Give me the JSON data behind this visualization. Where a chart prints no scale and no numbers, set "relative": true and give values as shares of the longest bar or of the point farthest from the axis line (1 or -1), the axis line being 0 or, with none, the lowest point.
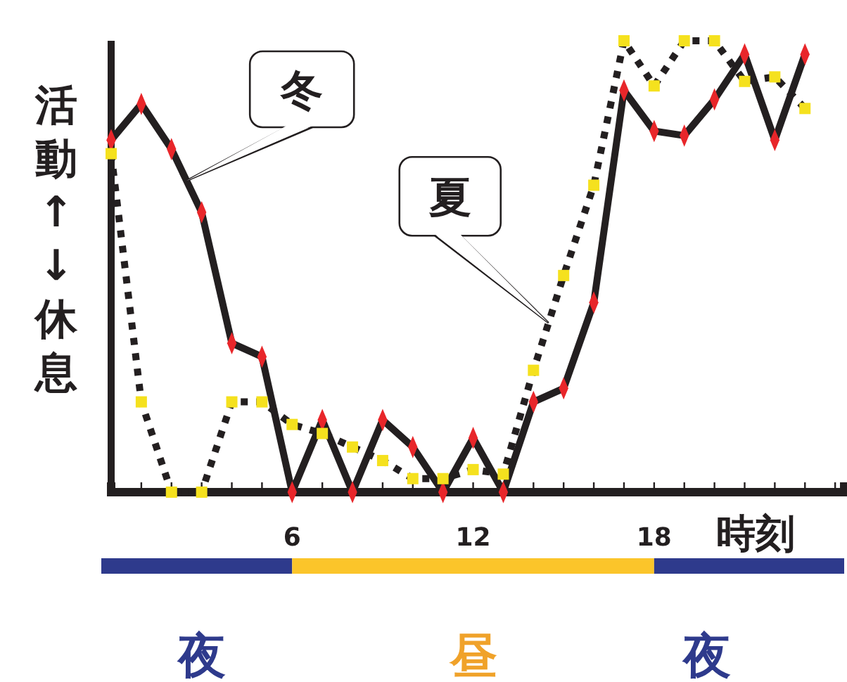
{
  "chart_data": {
    "type": "line",
    "relative": true,
    "xlabel": "時刻",
    "ylabel": "活動↑↓休息",
    "x": [
      0,
      1,
      2,
      3,
      4,
      5,
      6,
      7,
      8,
      9,
      10,
      11,
      12,
      13,
      14,
      15,
      16,
      17,
      18,
      19,
      20,
      21,
      22,
      23
    ],
    "xlim": [
      0,
      24.3
    ],
    "xticks": [
      {
        "value": 1,
        "label": null
      },
      {
        "value": 2,
        "label": null
      },
      {
        "value": 3,
        "label": null
      },
      {
        "value": 4,
        "label": null
      },
      {
        "value": 5,
        "label": null
      },
      6,
      {
        "value": 7,
        "label": null
      },
      {
        "value": 8,
        "label": null
      },
      {
        "value": 9,
        "label": null
      },
      {
        "value": 10,
        "label": null
      },
      {
        "value": 11,
        "label": null
      },
      12,
      {
        "value": 13,
        "label": null
      },
      {
        "value": 14,
        "label": null
      },
      {
        "value": 15,
        "label": null
      },
      {
        "value": 16,
        "label": null
      },
      {
        "value": 17,
        "label": null
      },
      18,
      {
        "value": 19,
        "label": null
      },
      {
        "value": 20,
        "label": null
      },
      {
        "value": 21,
        "label": null
      },
      {
        "value": 22,
        "label": null
      },
      {
        "value": 23,
        "label": null
      },
      {
        "value": 24,
        "label": null
      }
    ],
    "series": [
      {
        "name": "冬",
        "color": "#231f20",
        "line_style": "solid",
        "marker": "diamond",
        "colors": [
          "#e8262a",
          "#e8262a",
          "#e8262a",
          "#e8262a",
          "#e8262a",
          "#e8262a",
          "#e8262a",
          "#e8262a",
          "#e8262a",
          "#e8262a",
          "#e8262a",
          "#e8262a",
          "#e8262a",
          "#e8262a",
          "#e8262a",
          "#e8262a",
          "#e8262a",
          "#e8262a",
          "#e8262a",
          "#e8262a",
          "#e8262a",
          "#e8262a",
          "#e8262a",
          "#e8262a"
        ],
        "values": [
          0.78,
          0.86,
          0.76,
          0.62,
          0.33,
          0.3,
          0,
          0.16,
          0,
          0.16,
          0.1,
          0,
          0.12,
          0,
          0.2,
          0.23,
          0.42,
          0.89,
          0.8,
          0.79,
          0.87,
          0.97,
          0.78,
          0.97
        ]
      },
      {
        "name": "夏",
        "color": "#231f20",
        "line_style": "dotted",
        "marker": "square",
        "colors": [
          "#f5e11e",
          "#f5e11e",
          "#f5e11e",
          "#f5e11e",
          "#f5e11e",
          "#f5e11e",
          "#f5e11e",
          "#f5e11e",
          "#f5e11e",
          "#f5e11e",
          "#f5e11e",
          "#f5e11e",
          "#f5e11e",
          "#f5e11e",
          "#f5e11e",
          "#f5e11e",
          "#f5e11e",
          "#f5e11e",
          "#f5e11e",
          "#f5e11e",
          "#f5e11e",
          "#f5e11e",
          "#f5e11e",
          "#f5e11e"
        ],
        "values": [
          0.75,
          0.2,
          0,
          0,
          0.2,
          0.2,
          0.15,
          0.13,
          0.1,
          0.07,
          0.03,
          0.03,
          0.05,
          0.04,
          0.27,
          0.48,
          0.68,
          1,
          0.9,
          1,
          1,
          0.91,
          0.92,
          0.85
        ]
      }
    ],
    "annotations": [
      "夜",
      "昼",
      "夜"
    ]
  }
}
